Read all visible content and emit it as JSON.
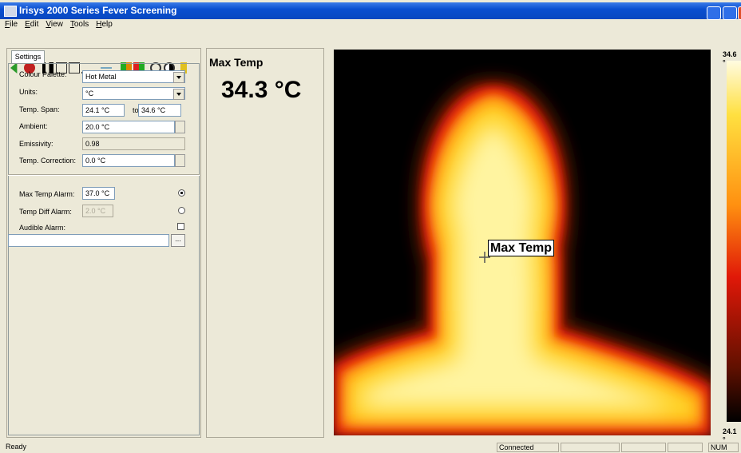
{
  "window": {
    "title": "Irisys 2000 Series Fever Screening"
  },
  "menu": [
    "File",
    "Edit",
    "View",
    "Tools",
    "Help"
  ],
  "settings": {
    "tab": "Settings",
    "colour_palette": {
      "label": "Colour Palette:",
      "value": "Hot Metal"
    },
    "units": {
      "label": "Units:",
      "value": "°C"
    },
    "temp_span": {
      "label": "Temp. Span:",
      "from": "24.1 °C",
      "to_label": "to",
      "to": "34.6 °C"
    },
    "ambient": {
      "label": "Ambient:",
      "value": "20.0 °C"
    },
    "emissivity": {
      "label": "Emissivity:",
      "value": "0.98"
    },
    "temp_correction": {
      "label": "Temp. Correction:",
      "value": "0.0 °C"
    },
    "max_temp_alarm": {
      "label": "Max Temp Alarm:",
      "value": "37.0 °C"
    },
    "temp_diff_alarm": {
      "label": "Temp Diff Alarm:",
      "value": "2.0 °C"
    },
    "audible_alarm": {
      "label": "Audible Alarm:"
    },
    "browse_button": "..."
  },
  "readout": {
    "label": "Max Temp",
    "value": "34.3 °C"
  },
  "image": {
    "marker_label": "Max Temp",
    "scale_max": "34.6 °",
    "scale_min": "24.1 °"
  },
  "status": {
    "message": "Ready",
    "connection": "Connected",
    "num": "NUM"
  }
}
